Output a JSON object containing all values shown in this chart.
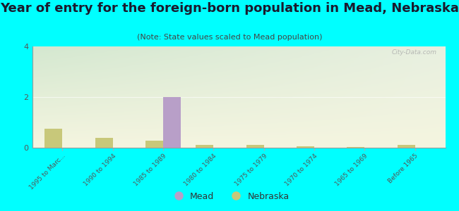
{
  "title": "Year of entry for the foreign-born population in Mead, Nebraska",
  "subtitle": "(Note: State values scaled to Mead population)",
  "categories": [
    "1995 to Marc...",
    "1990 to 1994",
    "1985 to 1989",
    "1980 to 1984",
    "1975 to 1979",
    "1970 to 1974",
    "1965 to 1969",
    "Before 1965"
  ],
  "mead_values": [
    0,
    0,
    2,
    0,
    0,
    0,
    0,
    0
  ],
  "nebraska_values": [
    0.75,
    0.38,
    0.28,
    0.1,
    0.1,
    0.06,
    0.02,
    0.12
  ],
  "mead_color": "#b89fc8",
  "nebraska_color": "#c8c87a",
  "ylim": [
    0,
    4
  ],
  "yticks": [
    0,
    2,
    4
  ],
  "background_color": "#00ffff",
  "plot_bg_top_left": "#d4e8d0",
  "plot_bg_top_right": "#e8f0e0",
  "plot_bg_bottom": "#f5f5e0",
  "bar_width": 0.35,
  "title_fontsize": 13,
  "subtitle_fontsize": 8,
  "watermark": "City-Data.com"
}
